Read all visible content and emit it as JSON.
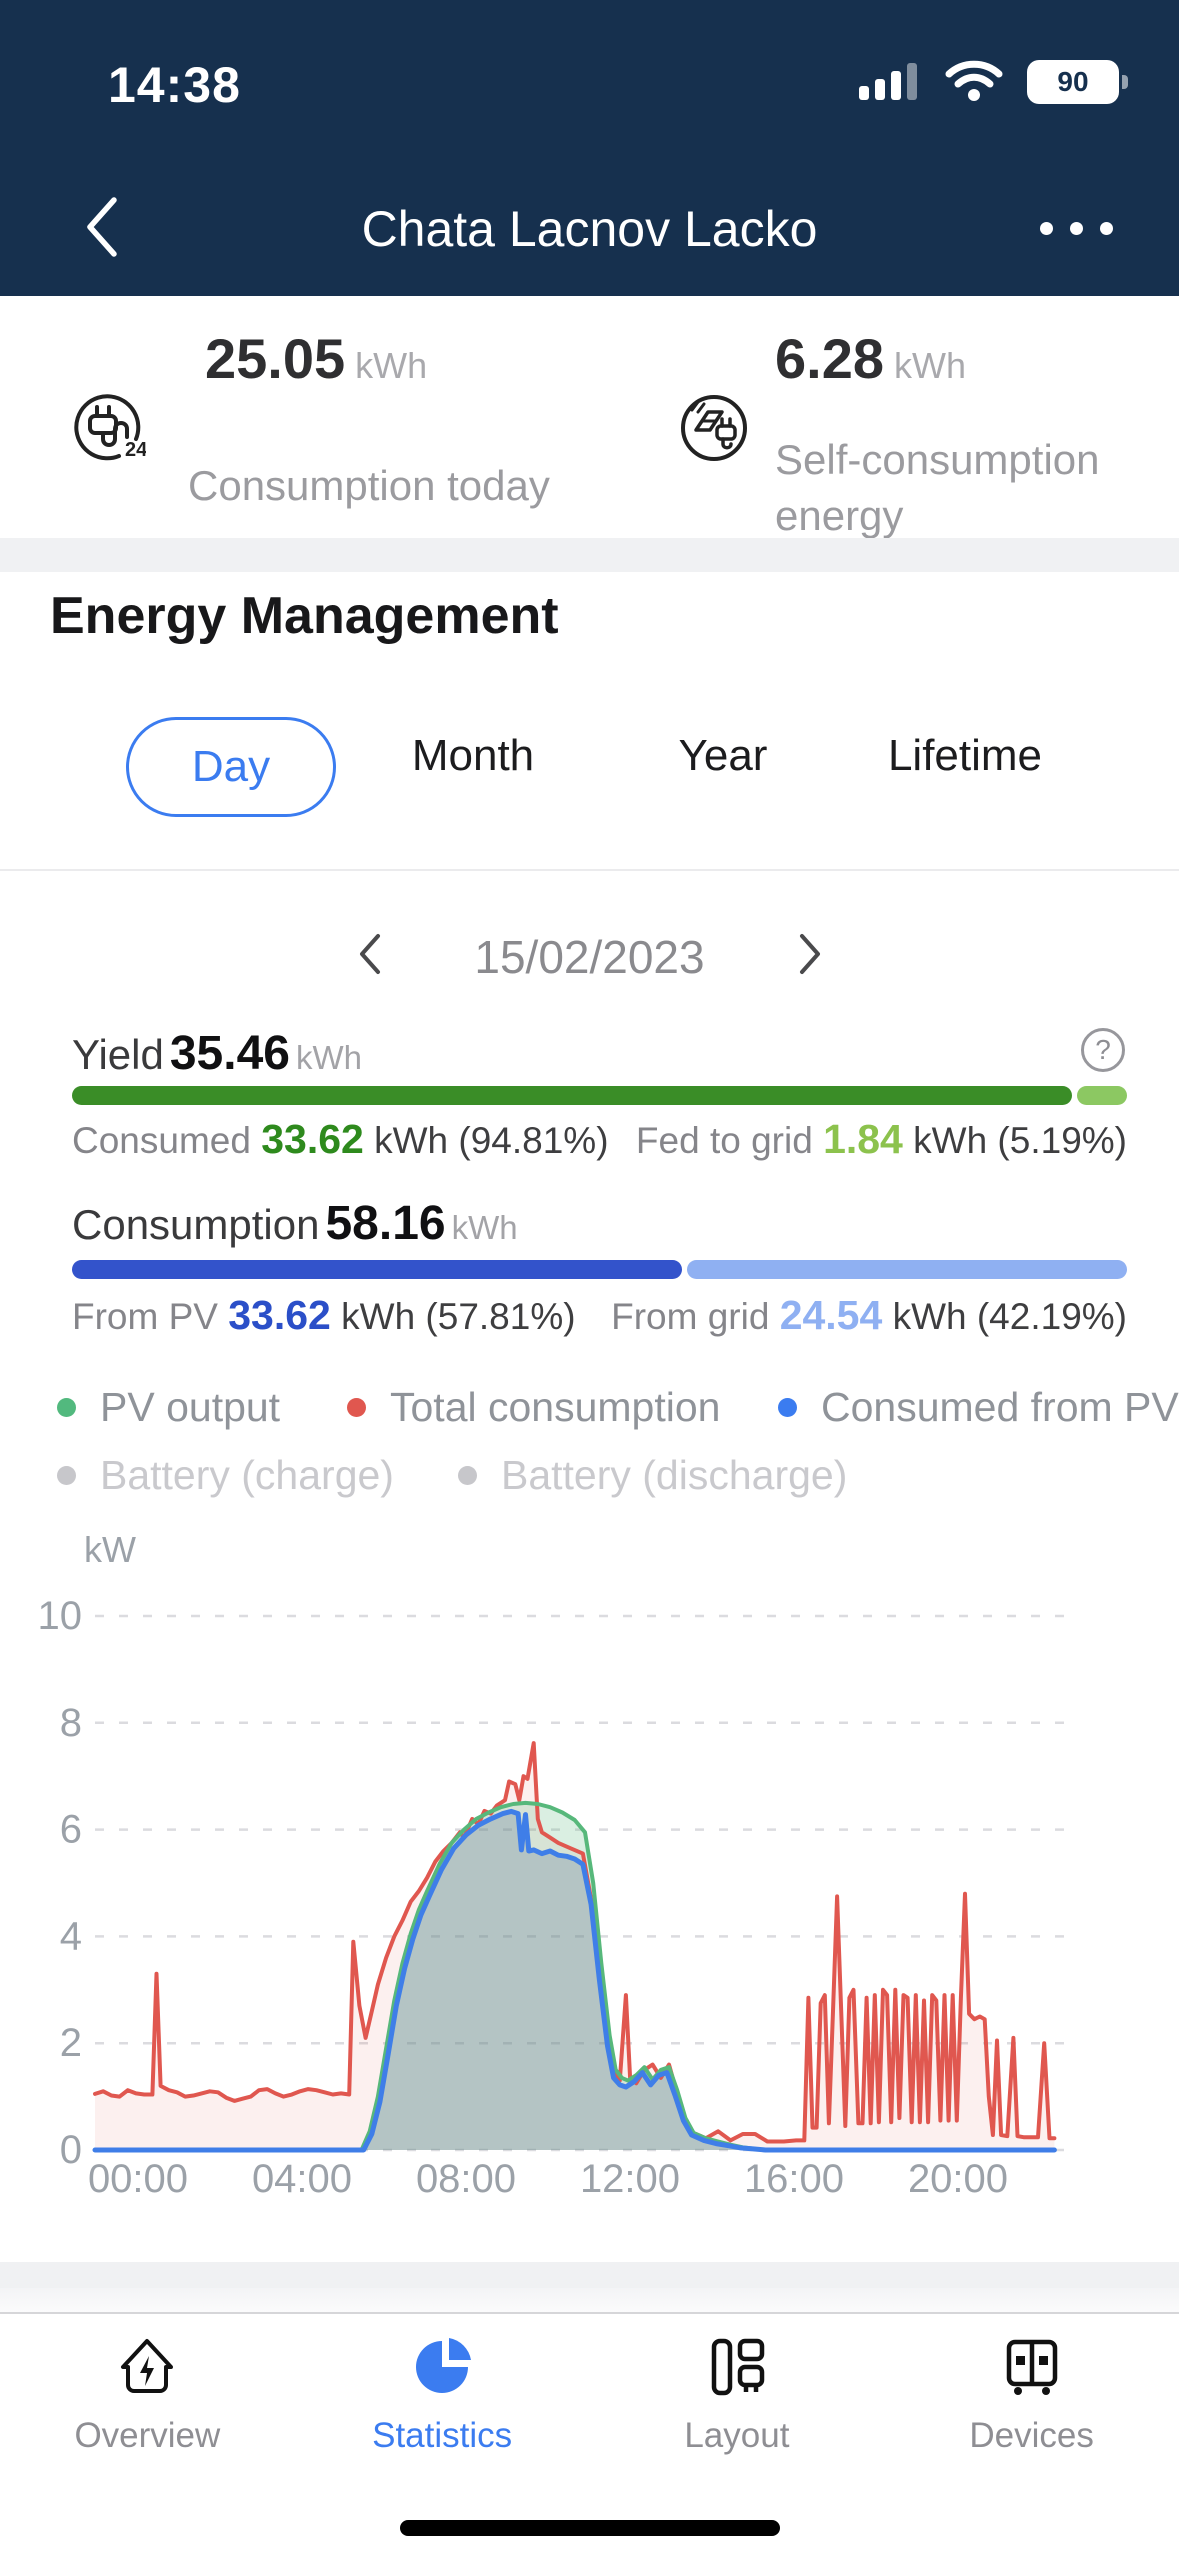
{
  "status_bar": {
    "time": "14:38",
    "battery_pct": "90"
  },
  "nav": {
    "title": "Chata Lacnov Lacko"
  },
  "summary": {
    "left": {
      "value": "25.05",
      "unit": "kWh",
      "label": "Consumption today"
    },
    "right": {
      "value": "6.28",
      "unit": "kWh",
      "label": "Self-consumption energy"
    }
  },
  "section": {
    "title": "Energy Management"
  },
  "tabs": {
    "items": [
      {
        "label": "Day"
      },
      {
        "label": "Month"
      },
      {
        "label": "Year"
      },
      {
        "label": "Lifetime"
      }
    ]
  },
  "date_nav": {
    "date": "15/02/2023"
  },
  "yield": {
    "label": "Yield",
    "value": "35.46",
    "unit": "kWh",
    "left_label": "Consumed",
    "left_value": "33.62",
    "left_detail": "kWh (94.81%)",
    "right_label": "Fed to grid",
    "right_value": "1.84",
    "right_detail": "kWh (5.19%)",
    "pct": 94.81,
    "color_dark": "#3a8d27",
    "color_light": "#8cc862",
    "left_value_color": "#2e8a1d",
    "right_value_color": "#8cc24d"
  },
  "consumption": {
    "label": "Consumption",
    "value": "58.16",
    "unit": "kWh",
    "left_label": "From PV",
    "left_value": "33.62",
    "left_detail": "kWh (57.81%)",
    "right_label": "From grid",
    "right_value": "24.54",
    "right_detail": "kWh (42.19%)",
    "pct": 57.81,
    "color_dark": "#3353cb",
    "color_light": "#8fb0f2",
    "left_value_color": "#2b4fc8",
    "right_value_color": "#8fb0f2"
  },
  "legend": {
    "row1": [
      {
        "label": "PV output",
        "color": "#52b97e"
      },
      {
        "label": "Total consumption",
        "color": "#e0574f"
      },
      {
        "label": "Consumed from PV",
        "color": "#3b7cf0"
      }
    ],
    "row2": [
      {
        "label": "Battery (charge)",
        "color": "#c7c7cb"
      },
      {
        "label": "Battery (discharge)",
        "color": "#c7c7cb"
      }
    ]
  },
  "chart_data": {
    "type": "area",
    "title": "",
    "xlabel": "",
    "ylabel": "kW",
    "ylim": [
      0,
      10
    ],
    "y_ticks": [
      0,
      2,
      4,
      6,
      8,
      10
    ],
    "xlim_hours": [
      0,
      24
    ],
    "x_ticks": [
      {
        "hour": 0,
        "label": "00:00"
      },
      {
        "hour": 4,
        "label": "04:00"
      },
      {
        "hour": 8,
        "label": "08:00"
      },
      {
        "hour": 12,
        "label": "12:00"
      },
      {
        "hour": 16,
        "label": "16:00"
      },
      {
        "hour": 20,
        "label": "20:00"
      }
    ],
    "grid": true,
    "legend_position": "above",
    "series": [
      {
        "name": "Total consumption",
        "color": "#e0574f",
        "fill": "rgba(224,87,79,0.09)",
        "width": 4,
        "points": [
          [
            0,
            1.05
          ],
          [
            0.2,
            1.1
          ],
          [
            0.4,
            1.02
          ],
          [
            0.6,
            1.0
          ],
          [
            0.8,
            1.12
          ],
          [
            1.0,
            1.06
          ],
          [
            1.2,
            1.04
          ],
          [
            1.4,
            1.04
          ],
          [
            1.5,
            3.3
          ],
          [
            1.6,
            1.2
          ],
          [
            1.8,
            1.12
          ],
          [
            2.0,
            1.08
          ],
          [
            2.2,
            1.0
          ],
          [
            2.4,
            1.02
          ],
          [
            2.6,
            1.06
          ],
          [
            2.8,
            1.1
          ],
          [
            3.0,
            1.08
          ],
          [
            3.2,
            0.98
          ],
          [
            3.4,
            0.92
          ],
          [
            3.6,
            0.96
          ],
          [
            3.8,
            1.0
          ],
          [
            4.0,
            1.12
          ],
          [
            4.2,
            1.14
          ],
          [
            4.4,
            1.06
          ],
          [
            4.6,
            1.0
          ],
          [
            4.8,
            1.04
          ],
          [
            5.0,
            1.1
          ],
          [
            5.2,
            1.14
          ],
          [
            5.4,
            1.12
          ],
          [
            5.6,
            1.08
          ],
          [
            5.8,
            1.04
          ],
          [
            6.0,
            1.06
          ],
          [
            6.2,
            1.04
          ],
          [
            6.3,
            3.9
          ],
          [
            6.45,
            2.7
          ],
          [
            6.6,
            2.1
          ],
          [
            6.75,
            2.6
          ],
          [
            6.9,
            3.1
          ],
          [
            7.1,
            3.6
          ],
          [
            7.3,
            4.0
          ],
          [
            7.5,
            4.3
          ],
          [
            7.7,
            4.65
          ],
          [
            7.9,
            4.85
          ],
          [
            8.1,
            5.1
          ],
          [
            8.3,
            5.4
          ],
          [
            8.5,
            5.6
          ],
          [
            8.7,
            5.75
          ],
          [
            8.9,
            5.95
          ],
          [
            9.0,
            5.85
          ],
          [
            9.2,
            6.2
          ],
          [
            9.35,
            6.1
          ],
          [
            9.5,
            6.35
          ],
          [
            9.65,
            6.3
          ],
          [
            9.8,
            6.45
          ],
          [
            10.0,
            6.55
          ],
          [
            10.1,
            6.9
          ],
          [
            10.25,
            6.85
          ],
          [
            10.35,
            6.55
          ],
          [
            10.45,
            7.0
          ],
          [
            10.55,
            6.95
          ],
          [
            10.7,
            7.62
          ],
          [
            10.8,
            6.2
          ],
          [
            10.9,
            5.95
          ],
          [
            11.1,
            5.85
          ],
          [
            11.3,
            5.75
          ],
          [
            11.6,
            5.65
          ],
          [
            11.9,
            5.55
          ],
          [
            12.1,
            4.7
          ],
          [
            12.3,
            3.3
          ],
          [
            12.5,
            2.1
          ],
          [
            12.65,
            1.45
          ],
          [
            12.8,
            1.3
          ],
          [
            12.95,
            2.9
          ],
          [
            13.05,
            1.35
          ],
          [
            13.2,
            1.25
          ],
          [
            13.4,
            1.5
          ],
          [
            13.6,
            1.6
          ],
          [
            13.8,
            1.35
          ],
          [
            14.0,
            1.6
          ],
          [
            14.2,
            1.05
          ],
          [
            14.4,
            0.5
          ],
          [
            14.6,
            0.32
          ],
          [
            14.9,
            0.22
          ],
          [
            15.2,
            0.35
          ],
          [
            15.5,
            0.18
          ],
          [
            15.8,
            0.3
          ],
          [
            16.1,
            0.3
          ],
          [
            16.4,
            0.16
          ],
          [
            16.8,
            0.16
          ],
          [
            17.1,
            0.18
          ],
          [
            17.3,
            0.18
          ],
          [
            17.4,
            2.85
          ],
          [
            17.5,
            0.42
          ],
          [
            17.6,
            0.42
          ],
          [
            17.7,
            2.75
          ],
          [
            17.8,
            2.9
          ],
          [
            17.9,
            0.5
          ],
          [
            18.0,
            2.6
          ],
          [
            18.1,
            4.75
          ],
          [
            18.2,
            2.6
          ],
          [
            18.3,
            0.45
          ],
          [
            18.4,
            2.85
          ],
          [
            18.5,
            3.0
          ],
          [
            18.62,
            0.5
          ],
          [
            18.72,
            0.5
          ],
          [
            18.82,
            2.85
          ],
          [
            18.92,
            0.5
          ],
          [
            19.02,
            2.9
          ],
          [
            19.12,
            0.52
          ],
          [
            19.22,
            3.0
          ],
          [
            19.32,
            2.9
          ],
          [
            19.42,
            0.52
          ],
          [
            19.52,
            3.0
          ],
          [
            19.62,
            0.6
          ],
          [
            19.72,
            2.9
          ],
          [
            19.82,
            2.85
          ],
          [
            19.92,
            0.52
          ],
          [
            20.02,
            2.9
          ],
          [
            20.12,
            0.52
          ],
          [
            20.22,
            2.8
          ],
          [
            20.32,
            0.52
          ],
          [
            20.42,
            2.9
          ],
          [
            20.52,
            2.8
          ],
          [
            20.62,
            0.55
          ],
          [
            20.72,
            2.9
          ],
          [
            20.82,
            0.55
          ],
          [
            20.92,
            2.9
          ],
          [
            21.02,
            0.55
          ],
          [
            21.12,
            2.85
          ],
          [
            21.22,
            4.8
          ],
          [
            21.32,
            2.55
          ],
          [
            21.45,
            2.45
          ],
          [
            21.58,
            2.5
          ],
          [
            21.7,
            2.45
          ],
          [
            21.8,
            1.0
          ],
          [
            21.9,
            0.28
          ],
          [
            22.0,
            2.05
          ],
          [
            22.1,
            0.28
          ],
          [
            22.25,
            0.26
          ],
          [
            22.4,
            2.1
          ],
          [
            22.5,
            0.26
          ],
          [
            22.65,
            0.24
          ],
          [
            22.85,
            0.24
          ],
          [
            23.0,
            0.24
          ],
          [
            23.15,
            2.0
          ],
          [
            23.28,
            0.22
          ],
          [
            23.4,
            0.22
          ]
        ]
      },
      {
        "name": "PV output",
        "color": "#57b87b",
        "fill": "rgba(87,184,123,0.22)",
        "width": 4,
        "points": [
          [
            0,
            0
          ],
          [
            6.5,
            0
          ],
          [
            6.7,
            0.35
          ],
          [
            6.9,
            1.0
          ],
          [
            7.1,
            1.9
          ],
          [
            7.3,
            2.8
          ],
          [
            7.5,
            3.5
          ],
          [
            7.7,
            4.05
          ],
          [
            7.9,
            4.5
          ],
          [
            8.1,
            4.85
          ],
          [
            8.4,
            5.35
          ],
          [
            8.7,
            5.75
          ],
          [
            9.0,
            6.0
          ],
          [
            9.3,
            6.2
          ],
          [
            9.6,
            6.32
          ],
          [
            9.9,
            6.42
          ],
          [
            10.2,
            6.48
          ],
          [
            10.5,
            6.5
          ],
          [
            10.8,
            6.48
          ],
          [
            11.1,
            6.42
          ],
          [
            11.4,
            6.32
          ],
          [
            11.7,
            6.18
          ],
          [
            11.95,
            5.95
          ],
          [
            12.15,
            5.0
          ],
          [
            12.35,
            3.5
          ],
          [
            12.55,
            2.15
          ],
          [
            12.7,
            1.5
          ],
          [
            12.85,
            1.35
          ],
          [
            13.0,
            1.3
          ],
          [
            13.2,
            1.4
          ],
          [
            13.4,
            1.55
          ],
          [
            13.6,
            1.32
          ],
          [
            13.8,
            1.5
          ],
          [
            14.0,
            1.55
          ],
          [
            14.2,
            1.12
          ],
          [
            14.4,
            0.6
          ],
          [
            14.6,
            0.32
          ],
          [
            14.9,
            0.22
          ],
          [
            15.2,
            0.16
          ],
          [
            15.5,
            0.1
          ],
          [
            15.8,
            0.05
          ],
          [
            16.1,
            0.02
          ],
          [
            16.4,
            0
          ],
          [
            23.4,
            0
          ]
        ]
      },
      {
        "name": "Consumed from PV",
        "color": "#3f7ee8",
        "fill": "rgba(98,126,158,0.30)",
        "width": 5,
        "points": [
          [
            0,
            0
          ],
          [
            6.55,
            0
          ],
          [
            6.75,
            0.3
          ],
          [
            6.95,
            0.9
          ],
          [
            7.15,
            1.8
          ],
          [
            7.35,
            2.7
          ],
          [
            7.55,
            3.4
          ],
          [
            7.75,
            3.95
          ],
          [
            7.95,
            4.4
          ],
          [
            8.15,
            4.75
          ],
          [
            8.45,
            5.25
          ],
          [
            8.75,
            5.65
          ],
          [
            9.05,
            5.9
          ],
          [
            9.35,
            6.08
          ],
          [
            9.65,
            6.2
          ],
          [
            9.95,
            6.3
          ],
          [
            10.15,
            6.34
          ],
          [
            10.32,
            6.3
          ],
          [
            10.4,
            5.62
          ],
          [
            10.5,
            6.28
          ],
          [
            10.58,
            5.6
          ],
          [
            10.7,
            5.62
          ],
          [
            10.9,
            5.55
          ],
          [
            11.1,
            5.6
          ],
          [
            11.3,
            5.52
          ],
          [
            11.5,
            5.5
          ],
          [
            11.7,
            5.45
          ],
          [
            11.9,
            5.35
          ],
          [
            12.1,
            4.6
          ],
          [
            12.3,
            3.2
          ],
          [
            12.5,
            1.95
          ],
          [
            12.65,
            1.35
          ],
          [
            12.8,
            1.22
          ],
          [
            12.95,
            1.18
          ],
          [
            13.15,
            1.28
          ],
          [
            13.35,
            1.45
          ],
          [
            13.55,
            1.22
          ],
          [
            13.75,
            1.4
          ],
          [
            13.95,
            1.45
          ],
          [
            14.15,
            1.02
          ],
          [
            14.35,
            0.55
          ],
          [
            14.55,
            0.28
          ],
          [
            14.85,
            0.18
          ],
          [
            15.15,
            0.12
          ],
          [
            15.45,
            0.08
          ],
          [
            15.75,
            0.04
          ],
          [
            16.05,
            0.02
          ],
          [
            16.35,
            0
          ],
          [
            23.4,
            0
          ]
        ]
      }
    ]
  },
  "tab_bar": {
    "items": [
      {
        "label": "Overview"
      },
      {
        "label": "Statistics",
        "active": true
      },
      {
        "label": "Layout"
      },
      {
        "label": "Devices"
      }
    ],
    "active_color": "#3b7cf0"
  }
}
